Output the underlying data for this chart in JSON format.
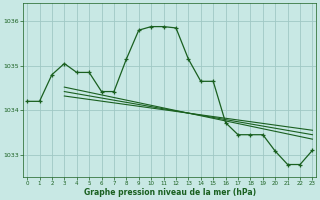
{
  "xlabel": "Graphe pression niveau de la mer (hPa)",
  "background_color": "#c8e8e4",
  "grid_color": "#a0c8c4",
  "line_color": "#1a6020",
  "text_color": "#1a6020",
  "ylim": [
    1032.5,
    1036.4
  ],
  "xlim": [
    -0.3,
    23.3
  ],
  "yticks": [
    1033,
    1034,
    1035,
    1036
  ],
  "xticks": [
    0,
    1,
    2,
    3,
    4,
    5,
    6,
    7,
    8,
    9,
    10,
    11,
    12,
    13,
    14,
    15,
    16,
    17,
    18,
    19,
    20,
    21,
    22,
    23
  ],
  "series": {
    "main": {
      "x": [
        0,
        1,
        2,
        3,
        4,
        5,
        6,
        7,
        8,
        9,
        10,
        11,
        12,
        13,
        14,
        15,
        16,
        17,
        18,
        19,
        20,
        21,
        22,
        23
      ],
      "y": [
        1034.2,
        1034.2,
        1034.8,
        1035.05,
        1034.85,
        1034.85,
        1034.42,
        1034.42,
        1035.15,
        1035.8,
        1035.88,
        1035.88,
        1035.85,
        1035.15,
        1034.65,
        1034.65,
        1033.72,
        1033.45,
        1033.45,
        1033.45,
        1033.08,
        1032.78,
        1032.78,
        1033.1
      ]
    },
    "trend1": {
      "x": [
        3,
        23
      ],
      "y": [
        1034.42,
        1033.45
      ]
    },
    "trend2": {
      "x": [
        3,
        23
      ],
      "y": [
        1034.52,
        1033.35
      ]
    },
    "trend3": {
      "x": [
        3,
        23
      ],
      "y": [
        1034.32,
        1033.55
      ]
    }
  }
}
